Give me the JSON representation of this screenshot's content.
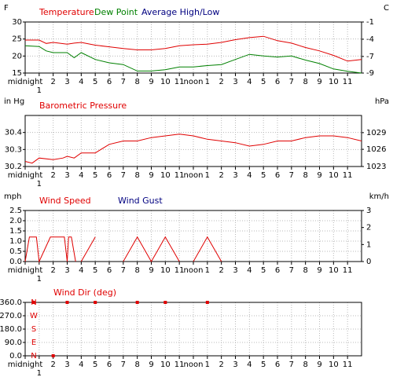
{
  "chart_data": [
    {
      "type": "line",
      "ylabel": "F",
      "y2label": "C",
      "x": [
        0,
        1,
        1.5,
        2,
        3,
        3.5,
        4,
        5,
        6,
        7,
        8,
        9,
        10,
        11,
        12,
        13,
        14,
        15,
        16,
        17,
        18,
        19,
        20,
        21,
        22,
        23,
        24
      ],
      "series": [
        {
          "name": "Temperature",
          "color": "#e00000",
          "values": [
            24.7,
            24.7,
            23.7,
            24,
            23.5,
            23.8,
            24,
            23.2,
            22.7,
            22.2,
            21.8,
            21.8,
            22.2,
            23,
            23.3,
            23.5,
            24,
            24.8,
            25.4,
            25.8,
            24.5,
            23.8,
            22.5,
            21.5,
            20.2,
            18.5,
            19
          ]
        },
        {
          "name": "Dew Point",
          "color": "#008000",
          "values": [
            23,
            22.8,
            21.5,
            21,
            21,
            19.5,
            21,
            19,
            18,
            17.5,
            15.6,
            15.6,
            16,
            16.8,
            16.8,
            17.2,
            17.5,
            19,
            20.5,
            20,
            19.7,
            20,
            18.8,
            17.8,
            16.2,
            15.5,
            15
          ]
        },
        {
          "name": "Average High/Low",
          "color": "#000080"
        }
      ],
      "xlim": [
        0,
        24
      ],
      "xticks": [
        {
          "value": 0,
          "label": "midnight"
        },
        1,
        2,
        3,
        4,
        5,
        6,
        7,
        8,
        9,
        10,
        11,
        {
          "value": 12,
          "label": "noon"
        },
        {
          "value": 13,
          "label": "1"
        },
        {
          "value": 14,
          "label": "2"
        },
        {
          "value": 15,
          "label": "3"
        },
        {
          "value": 16,
          "label": "4"
        },
        {
          "value": 17,
          "label": "5"
        },
        {
          "value": 18,
          "label": "6"
        },
        {
          "value": 19,
          "label": "7"
        },
        {
          "value": 20,
          "label": "8"
        },
        {
          "value": 21,
          "label": "9"
        },
        {
          "value": 22,
          "label": "10"
        },
        {
          "value": 23,
          "label": "11"
        }
      ],
      "ylim": [
        15,
        30
      ],
      "yticks": [
        15,
        20,
        25,
        30
      ],
      "y2lim": [
        -9.4,
        -1.1
      ],
      "y2ticks": [
        {
          "value": -9.4,
          "label": "-9"
        },
        {
          "value": -6.7,
          "label": "-7"
        },
        {
          "value": -3.9,
          "label": "-4"
        },
        {
          "value": -1.1,
          "label": "-1"
        }
      ],
      "grid": true
    },
    {
      "type": "line",
      "ylabel": "in Hg",
      "y2label": "hPa",
      "x": [
        0,
        0.5,
        1,
        2,
        2.7,
        3,
        3.5,
        4,
        5,
        6,
        7,
        8,
        9,
        10,
        11,
        12,
        13,
        14,
        15,
        16,
        17,
        18,
        19,
        20,
        21,
        22,
        23,
        24
      ],
      "series": [
        {
          "name": "Barometric Pressure",
          "color": "#e00000",
          "values": [
            30.23,
            30.22,
            30.25,
            30.24,
            30.25,
            30.26,
            30.25,
            30.28,
            30.28,
            30.33,
            30.35,
            30.35,
            30.37,
            30.38,
            30.39,
            30.38,
            30.36,
            30.35,
            30.34,
            30.32,
            30.33,
            30.35,
            30.35,
            30.37,
            30.38,
            30.38,
            30.37,
            30.35
          ]
        }
      ],
      "xlim": [
        0,
        24
      ],
      "xticks": [
        {
          "value": 0,
          "label": "midnight"
        },
        1,
        2,
        3,
        4,
        5,
        6,
        7,
        8,
        9,
        10,
        11,
        {
          "value": 12,
          "label": "noon"
        },
        {
          "value": 13,
          "label": "1"
        },
        {
          "value": 14,
          "label": "2"
        },
        {
          "value": 15,
          "label": "3"
        },
        {
          "value": 16,
          "label": "4"
        },
        {
          "value": 17,
          "label": "5"
        },
        {
          "value": 18,
          "label": "6"
        },
        {
          "value": 19,
          "label": "7"
        },
        {
          "value": 20,
          "label": "8"
        },
        {
          "value": 21,
          "label": "9"
        },
        {
          "value": 22,
          "label": "10"
        },
        {
          "value": 23,
          "label": "11"
        }
      ],
      "ylim": [
        30.2,
        30.5
      ],
      "yticks": [
        30.2,
        30.3,
        30.4
      ],
      "y2lim": [
        1022.7,
        1032.8
      ],
      "y2ticks": [
        {
          "value": 1022.7,
          "label": "1023"
        },
        {
          "value": 1026.1,
          "label": "1026"
        },
        {
          "value": 1029.4,
          "label": "1029"
        }
      ],
      "grid": true
    },
    {
      "type": "line",
      "ylabel": "mph",
      "y2label": "km/h",
      "x": [
        0,
        0.3,
        0.8,
        1,
        1.8,
        2.8,
        3,
        3.1,
        3.3,
        3.6,
        3.8,
        4,
        5,
        6,
        7,
        8,
        9,
        10,
        11,
        11.5,
        12,
        13,
        14
      ],
      "series": [
        {
          "name": "Wind Speed",
          "color": "#e00000",
          "values": [
            0,
            1.2,
            1.2,
            0,
            1.2,
            1.2,
            0,
            1.2,
            1.2,
            0,
            null,
            0,
            1.2,
            null,
            0,
            1.2,
            0,
            1.2,
            0,
            null,
            0,
            1.2,
            0
          ]
        },
        {
          "name": "Wind Gust",
          "color": "#000080"
        }
      ],
      "xlim": [
        0,
        24
      ],
      "xticks": [
        {
          "value": 0,
          "label": "midnight"
        },
        1,
        2,
        3,
        4,
        5,
        6,
        7,
        8,
        9,
        10,
        11,
        {
          "value": 12,
          "label": "noon"
        },
        {
          "value": 13,
          "label": "1"
        },
        {
          "value": 14,
          "label": "2"
        },
        {
          "value": 15,
          "label": "3"
        },
        {
          "value": 16,
          "label": "4"
        },
        {
          "value": 17,
          "label": "5"
        },
        {
          "value": 18,
          "label": "6"
        },
        {
          "value": 19,
          "label": "7"
        },
        {
          "value": 20,
          "label": "8"
        },
        {
          "value": 21,
          "label": "9"
        },
        {
          "value": 22,
          "label": "10"
        },
        {
          "value": 23,
          "label": "11"
        }
      ],
      "ylim": [
        0,
        2.5
      ],
      "yticks": [
        {
          "value": 0,
          "label": "0.0"
        },
        {
          "value": 0.5,
          "label": "0.5"
        },
        {
          "value": 1,
          "label": "1.0"
        },
        {
          "value": 1.5,
          "label": "1.5"
        },
        {
          "value": 2,
          "label": "2.0"
        },
        {
          "value": 2.5,
          "label": "2.5"
        }
      ],
      "y2lim": [
        0,
        3
      ],
      "y2ticks": [
        0,
        1,
        2,
        3
      ],
      "grid": true
    },
    {
      "type": "scatter",
      "x": [
        0.6,
        2,
        3,
        5,
        8,
        10,
        13
      ],
      "series": [
        {
          "name": "Wind Dir (deg)",
          "color": "#e00000",
          "values": [
            360,
            0,
            360,
            360,
            360,
            360,
            360
          ]
        }
      ],
      "xlim": [
        0,
        24
      ],
      "xticks": [
        {
          "value": 0,
          "label": "midnight"
        },
        1,
        2,
        3,
        4,
        5,
        6,
        7,
        8,
        9,
        10,
        11,
        {
          "value": 12,
          "label": "noon"
        },
        {
          "value": 13,
          "label": "1"
        },
        {
          "value": 14,
          "label": "2"
        },
        {
          "value": 15,
          "label": "3"
        },
        {
          "value": 16,
          "label": "4"
        },
        {
          "value": 17,
          "label": "5"
        },
        {
          "value": 18,
          "label": "6"
        },
        {
          "value": 19,
          "label": "7"
        },
        {
          "value": 20,
          "label": "8"
        },
        {
          "value": 21,
          "label": "9"
        },
        {
          "value": 22,
          "label": "10"
        },
        {
          "value": 23,
          "label": "11"
        }
      ],
      "ylim": [
        0,
        360
      ],
      "yticks": [
        {
          "value": 0,
          "label": "0.0"
        },
        {
          "value": 90,
          "label": "90.0"
        },
        {
          "value": 180,
          "label": "180.0"
        },
        {
          "value": 270,
          "label": "270.0"
        },
        {
          "value": 360,
          "label": "360.0"
        }
      ],
      "compass": [
        {
          "value": 0,
          "label": "N"
        },
        {
          "value": 90,
          "label": "E"
        },
        {
          "value": 180,
          "label": "S"
        },
        {
          "value": 270,
          "label": "W"
        },
        {
          "value": 360,
          "label": "N"
        }
      ],
      "grid": true
    }
  ]
}
